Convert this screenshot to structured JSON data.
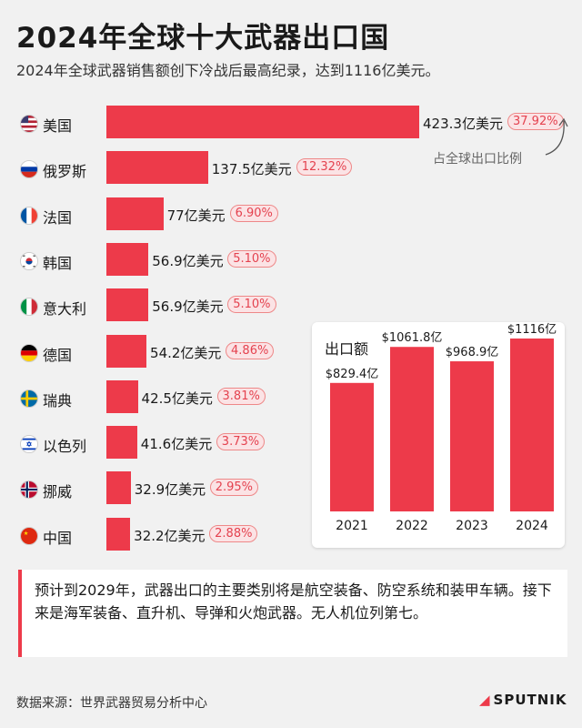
{
  "title": "2024年全球十大武器出口国",
  "subtitle": "2024年全球武器销售额创下冷战后最高纪录，达到1116亿美元。",
  "share_note": "占全球出口比例",
  "chart_data": [
    {
      "type": "bar",
      "orientation": "horizontal",
      "title": "2024年全球十大武器出口国",
      "unit": "亿美元",
      "categories": [
        "美国",
        "俄罗斯",
        "法国",
        "韩国",
        "意大利",
        "德国",
        "瑞典",
        "以色列",
        "挪威",
        "中国"
      ],
      "values": [
        423.3,
        137.5,
        77,
        56.9,
        56.9,
        54.2,
        42.5,
        41.6,
        32.9,
        32.2
      ],
      "value_labels": [
        "423.3亿美元",
        "137.5亿美元",
        "77亿美元",
        "56.9亿美元",
        "56.9亿美元",
        "54.2亿美元",
        "42.5亿美元",
        "41.6亿美元",
        "32.9亿美元",
        "32.2亿美元"
      ],
      "share_labels": [
        "37.92%",
        "12.32%",
        "6.90%",
        "5.10%",
        "5.10%",
        "4.86%",
        "3.81%",
        "3.73%",
        "2.95%",
        "2.88%"
      ],
      "color": "#ed3a4a"
    },
    {
      "type": "bar",
      "title": "出口额",
      "categories": [
        "2021",
        "2022",
        "2023",
        "2024"
      ],
      "values": [
        829.4,
        1061.8,
        968.9,
        1116
      ],
      "value_labels": [
        "$829.4亿",
        "$1061.8亿",
        "$968.9亿",
        "$1116亿"
      ],
      "color": "#ed3a4a"
    }
  ],
  "countries": [
    {
      "name": "美国",
      "flag": "us-flag-icon"
    },
    {
      "name": "俄罗斯",
      "flag": "russia-flag-icon"
    },
    {
      "name": "法国",
      "flag": "france-flag-icon"
    },
    {
      "name": "韩国",
      "flag": "korea-flag-icon"
    },
    {
      "name": "意大利",
      "flag": "italy-flag-icon"
    },
    {
      "name": "德国",
      "flag": "germany-flag-icon"
    },
    {
      "name": "瑞典",
      "flag": "sweden-flag-icon"
    },
    {
      "name": "以色列",
      "flag": "israel-flag-icon"
    },
    {
      "name": "挪威",
      "flag": "norway-flag-icon"
    },
    {
      "name": "中国",
      "flag": "china-flag-icon"
    }
  ],
  "forecast_text": "预计到2029年，武器出口的主要类别将是航空装备、防空系统和装甲车辆。接下来是海军装备、直升机、导弹和火炮武器。无人机位列第七。",
  "source": "数据来源：世界武器贸易分析中心",
  "logo": "SPUTNIK"
}
